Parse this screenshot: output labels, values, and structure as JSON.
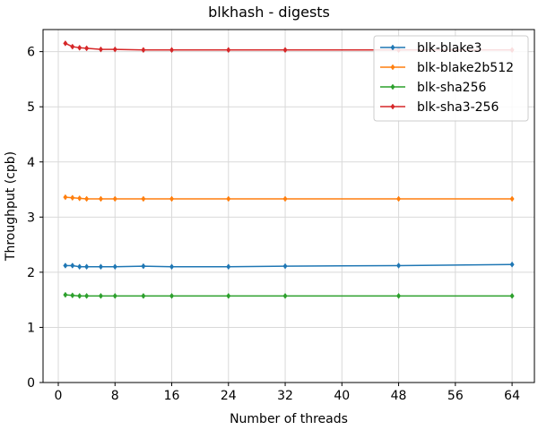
{
  "chart_data": {
    "type": "line",
    "title": "blkhash - digests",
    "xlabel": "Number of threads",
    "ylabel": "Throughput (cpb)",
    "xlim": [
      -2.15,
      67.15
    ],
    "ylim": [
      0,
      6.4
    ],
    "xticks": [
      0,
      8,
      16,
      24,
      32,
      40,
      48,
      56,
      64
    ],
    "yticks": [
      0,
      1,
      2,
      3,
      4,
      5,
      6
    ],
    "grid": true,
    "legend_position": "top-right",
    "x": [
      1,
      2,
      3,
      4,
      6,
      8,
      12,
      16,
      24,
      32,
      48,
      64
    ],
    "series": [
      {
        "name": "blk-blake3",
        "color": "#1f77b4",
        "values": [
          2.12,
          2.12,
          2.1,
          2.1,
          2.1,
          2.1,
          2.11,
          2.1,
          2.1,
          2.11,
          2.12,
          2.14
        ]
      },
      {
        "name": "blk-blake2b512",
        "color": "#ff7f0e",
        "values": [
          3.36,
          3.35,
          3.34,
          3.33,
          3.33,
          3.33,
          3.33,
          3.33,
          3.33,
          3.33,
          3.33,
          3.33
        ]
      },
      {
        "name": "blk-sha256",
        "color": "#2ca02c",
        "values": [
          1.59,
          1.58,
          1.57,
          1.57,
          1.57,
          1.57,
          1.57,
          1.57,
          1.57,
          1.57,
          1.57,
          1.57
        ]
      },
      {
        "name": "blk-sha3-256",
        "color": "#d62728",
        "values": [
          6.15,
          6.09,
          6.07,
          6.06,
          6.04,
          6.04,
          6.03,
          6.03,
          6.03,
          6.03,
          6.03,
          6.03
        ]
      }
    ]
  }
}
